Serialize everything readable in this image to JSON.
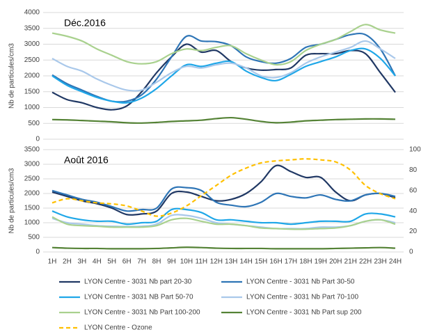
{
  "chart_data": [
    {
      "type": "line",
      "title": "Déc.2016",
      "ylabel": "Nb de particules/cm3",
      "ylim": [
        0,
        4000
      ],
      "yticks": [
        0,
        500,
        1000,
        1500,
        2000,
        2500,
        3000,
        3500,
        4000
      ],
      "grid": true,
      "series": [
        {
          "values": [
            1480,
            1250,
            1150,
            1000,
            930,
            1050,
            1500,
            2100,
            2600,
            3000,
            2750,
            2800,
            2450,
            2250,
            2180,
            2200,
            2250,
            2650,
            2700,
            2700,
            2800,
            2700,
            2100,
            1480
          ]
        },
        {
          "values": [
            2030,
            1750,
            1550,
            1350,
            1200,
            1200,
            1400,
            1900,
            2600,
            3250,
            3100,
            3080,
            2950,
            2600,
            2450,
            2400,
            2550,
            2900,
            3000,
            3150,
            3300,
            3300,
            2850,
            2000
          ]
        },
        {
          "values": [
            2000,
            1700,
            1500,
            1320,
            1200,
            1150,
            1300,
            1600,
            2000,
            2350,
            2300,
            2400,
            2450,
            2150,
            1950,
            1850,
            2050,
            2300,
            2450,
            2600,
            2800,
            2850,
            2550,
            2000
          ]
        },
        {
          "values": [
            2550,
            2300,
            2150,
            1900,
            1700,
            1550,
            1550,
            1800,
            2100,
            2300,
            2250,
            2350,
            2400,
            2250,
            2000,
            1950,
            2100,
            2400,
            2600,
            2750,
            2900,
            3100,
            2850,
            2550
          ]
        },
        {
          "values": [
            3350,
            3250,
            3100,
            2850,
            2650,
            2450,
            2380,
            2450,
            2700,
            2850,
            2800,
            2900,
            2950,
            2700,
            2500,
            2350,
            2450,
            2800,
            3000,
            3150,
            3400,
            3620,
            3450,
            3350
          ]
        },
        {
          "values": [
            620,
            610,
            590,
            570,
            550,
            520,
            510,
            530,
            560,
            580,
            600,
            650,
            680,
            630,
            560,
            520,
            540,
            580,
            600,
            620,
            630,
            640,
            640,
            630
          ]
        }
      ]
    },
    {
      "type": "line",
      "title": "Août 2016",
      "ylabel": "Nb de particules/cm3",
      "categories": [
        "1H",
        "2H",
        "3H",
        "4H",
        "5H",
        "6H",
        "7H",
        "8H",
        "9H",
        "10H",
        "11H",
        "12H",
        "13H",
        "14H",
        "15H",
        "16H",
        "17H",
        "18H",
        "19H",
        "20H",
        "21H",
        "22H",
        "23H",
        "24H"
      ],
      "ylim": [
        0,
        3500
      ],
      "yticks": [
        0,
        500,
        1000,
        1500,
        2000,
        2500,
        3000,
        3500
      ],
      "y2lim": [
        0,
        100
      ],
      "y2ticks": [
        0,
        20,
        40,
        60,
        80,
        100
      ],
      "grid": true,
      "series": [
        {
          "name": "LYON Centre - 3031 Nb part 20-30",
          "color": "#203864",
          "values": [
            2050,
            1900,
            1750,
            1650,
            1500,
            1280,
            1300,
            1400,
            2000,
            2050,
            1900,
            1750,
            1800,
            2000,
            2400,
            2950,
            2750,
            2550,
            2550,
            2050,
            1750,
            1950,
            2000,
            1850
          ]
        },
        {
          "name": "LYON Centre - 3031 Nb Part 30-50",
          "color": "#2e75b6",
          "values": [
            2100,
            1950,
            1800,
            1700,
            1550,
            1400,
            1450,
            1500,
            2150,
            2200,
            2100,
            1700,
            1600,
            1550,
            1700,
            2000,
            1900,
            1850,
            1950,
            1800,
            1750,
            1950,
            2000,
            1900
          ]
        },
        {
          "name": "LYON Centre - 3031 NB Part 50-70",
          "color": "#1fa7e8",
          "values": [
            1400,
            1200,
            1100,
            1050,
            1050,
            950,
            1000,
            1050,
            1450,
            1450,
            1350,
            1100,
            1100,
            1050,
            1000,
            1000,
            950,
            1000,
            1050,
            1050,
            1050,
            1300,
            1300,
            1200
          ]
        },
        {
          "name": "LYON Centre - 3031 Nb Part 70-100",
          "color": "#a9c8ea",
          "values": [
            1150,
            1000,
            950,
            900,
            880,
            870,
            880,
            950,
            1250,
            1250,
            1150,
            1000,
            950,
            900,
            850,
            800,
            800,
            800,
            850,
            850,
            900,
            1050,
            1100,
            1000
          ]
        },
        {
          "name": "LYON Centre - 3031 Nb Part 100-200",
          "color": "#a9d18e",
          "values": [
            1200,
            950,
            900,
            880,
            850,
            850,
            850,
            900,
            1100,
            1150,
            1050,
            950,
            950,
            900,
            820,
            800,
            780,
            780,
            800,
            820,
            900,
            1050,
            1100,
            950
          ]
        },
        {
          "name": "LYON Centre - 3031 Nb Part sup 200",
          "color": "#548235",
          "values": [
            150,
            130,
            120,
            120,
            110,
            110,
            110,
            120,
            140,
            160,
            150,
            130,
            120,
            120,
            120,
            110,
            110,
            110,
            110,
            120,
            130,
            140,
            150,
            130
          ]
        },
        {
          "name": "LYON Centre - Ozone",
          "color": "#ffc000",
          "dashed": true,
          "axis": "y2",
          "values": [
            48,
            52,
            50,
            48,
            47,
            45,
            40,
            35,
            38,
            45,
            55,
            65,
            75,
            82,
            87,
            89,
            90,
            91,
            90,
            88,
            80,
            65,
            57,
            52
          ]
        }
      ]
    }
  ]
}
